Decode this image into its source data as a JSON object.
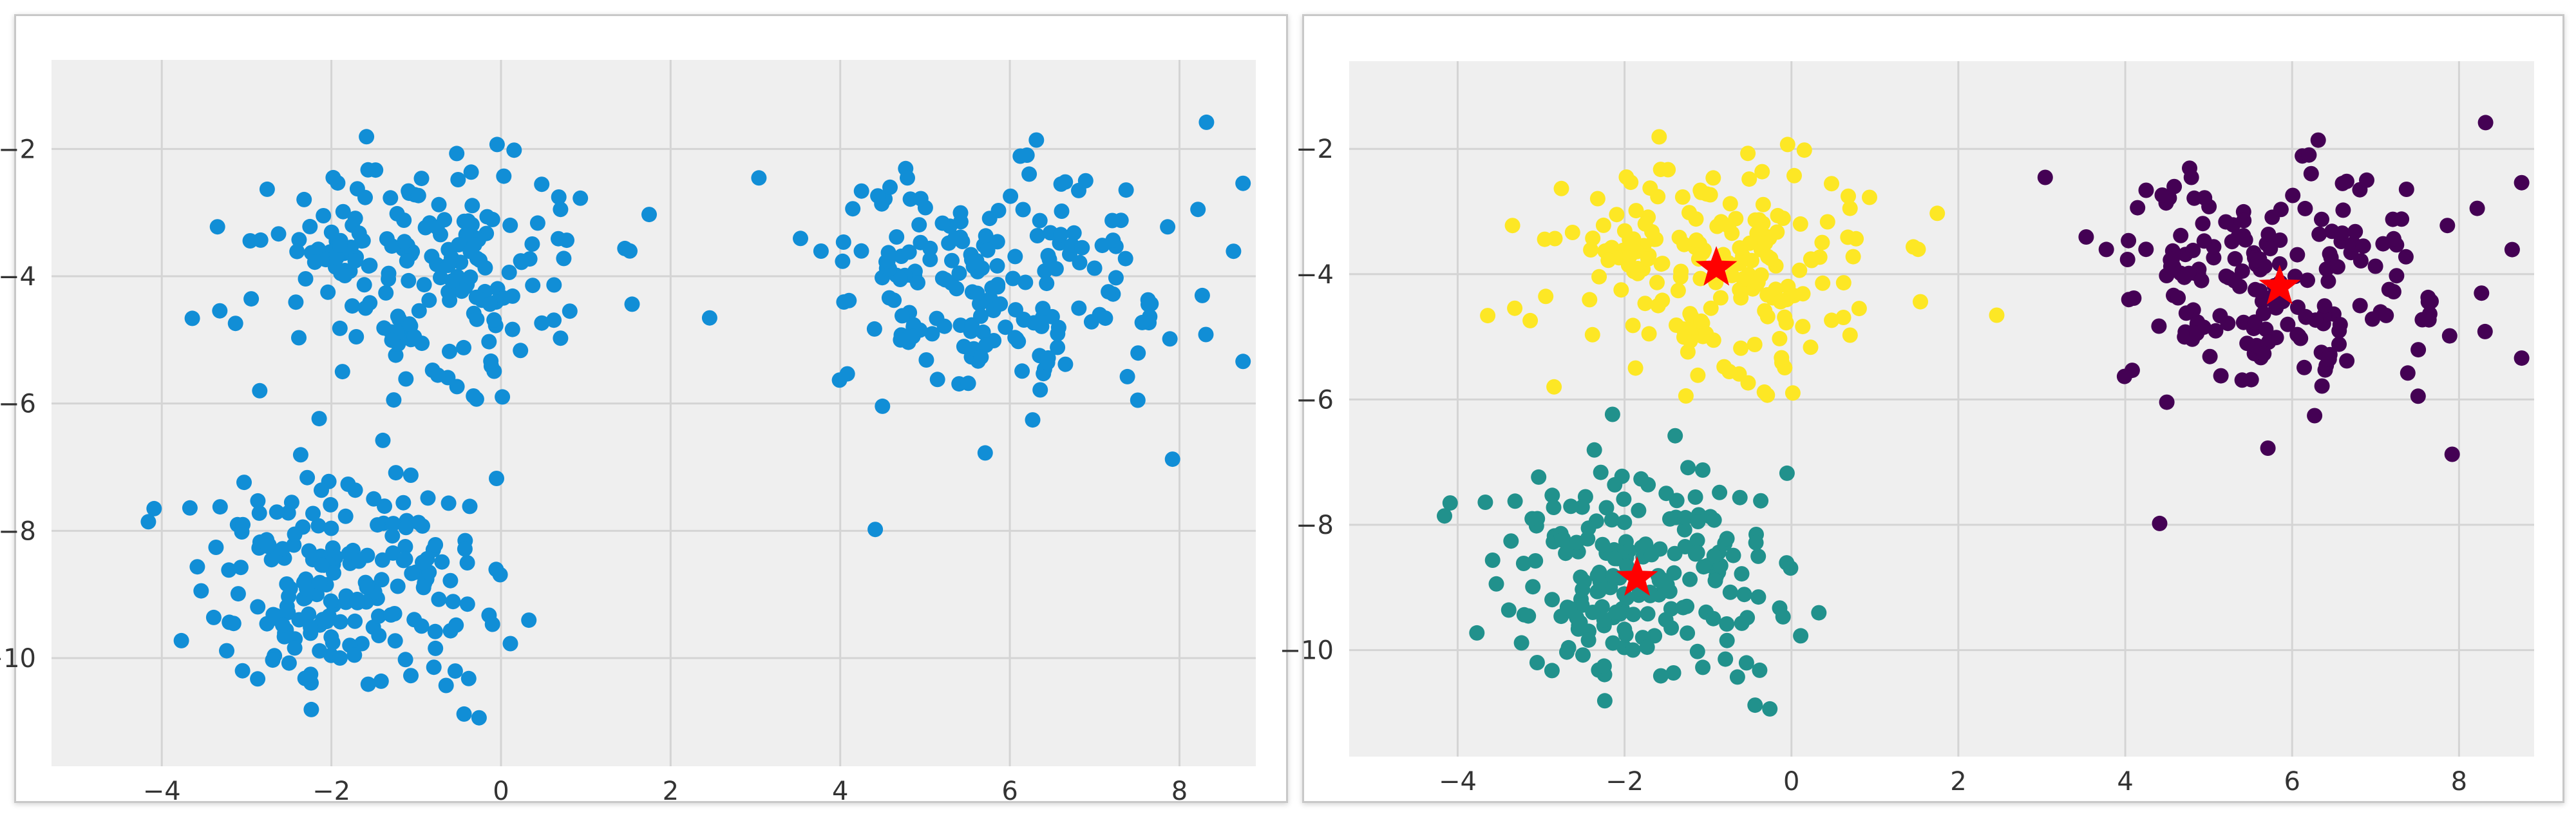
{
  "chart_data": [
    {
      "type": "scatter",
      "title": "",
      "xlabel": "",
      "ylabel": "",
      "xlim": [
        -5.3,
        8.9
      ],
      "ylim": [
        -11.7,
        -0.6
      ],
      "xticks": [
        -4,
        -2,
        0,
        2,
        4,
        6,
        8
      ],
      "yticks": [
        -2,
        -4,
        -6,
        -8,
        -10
      ],
      "xtick_labels": [
        "−4",
        "−2",
        "0",
        "2",
        "4",
        "6",
        "8"
      ],
      "ytick_labels": [
        "−2",
        "−4",
        "−6",
        "−8",
        "−10"
      ],
      "grid": true,
      "point_color": "#118ed6",
      "clusters": [
        {
          "center": [
            -0.9,
            -3.9
          ],
          "n": 200,
          "spread": [
            1.05,
            0.85
          ]
        },
        {
          "center": [
            5.9,
            -4.2
          ],
          "n": 200,
          "spread": [
            1.0,
            0.9
          ]
        },
        {
          "center": [
            -1.9,
            -8.9
          ],
          "n": 200,
          "spread": [
            1.0,
            0.95
          ]
        }
      ]
    },
    {
      "type": "scatter",
      "title": "",
      "xlabel": "",
      "ylabel": "",
      "xlim": [
        -5.3,
        8.9
      ],
      "ylim": [
        -11.7,
        -0.6
      ],
      "xticks": [
        -4,
        -2,
        0,
        2,
        4,
        6,
        8
      ],
      "yticks": [
        -2,
        -4,
        -6,
        -8,
        -10
      ],
      "xtick_labels": [
        "−4",
        "−2",
        "0",
        "2",
        "4",
        "6",
        "8"
      ],
      "ytick_labels": [
        "−2",
        "−4",
        "−6",
        "−8",
        "−10"
      ],
      "grid": true,
      "clusters": [
        {
          "center": [
            -0.9,
            -3.9
          ],
          "n": 200,
          "spread": [
            1.05,
            0.85
          ],
          "color": "#fde725"
        },
        {
          "center": [
            5.9,
            -4.2
          ],
          "n": 200,
          "spread": [
            1.0,
            0.9
          ],
          "color": "#440154"
        },
        {
          "center": [
            -1.9,
            -8.9
          ],
          "n": 200,
          "spread": [
            1.0,
            0.95
          ],
          "color": "#21918c"
        }
      ],
      "centroids": [
        [
          -0.9,
          -3.9
        ],
        [
          5.85,
          -4.2
        ],
        [
          -1.85,
          -8.85
        ]
      ],
      "centroid_color": "#ff0000"
    }
  ]
}
